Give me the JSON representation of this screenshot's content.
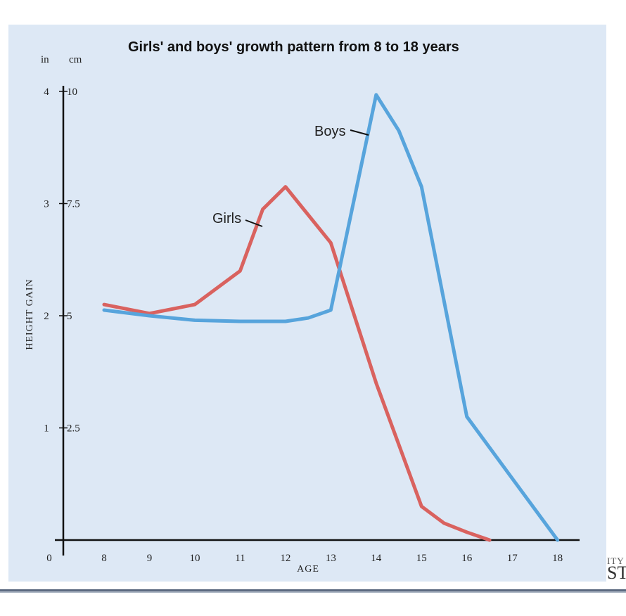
{
  "chart_data": {
    "type": "line",
    "title": "Girls' and boys' growth pattern from 8 to 18 years",
    "xlabel": "AGE",
    "ylabel": "HEIGHT GAIN",
    "y_units": {
      "inches": "in",
      "centimeters": "cm"
    },
    "x_ticks": [
      "8",
      "9",
      "10",
      "11",
      "12",
      "13",
      "14",
      "15",
      "16",
      "17",
      "18"
    ],
    "y_ticks_in": [
      "0",
      "1",
      "2",
      "3",
      "4"
    ],
    "y_ticks_cm": [
      "2.5",
      "5",
      "7.5",
      "10"
    ],
    "xlim": [
      7.1,
      18.3
    ],
    "ylim": [
      0,
      4
    ],
    "grid": false,
    "legend": "inline labels",
    "series": [
      {
        "name": "Girls",
        "color": "#d9625f",
        "x": [
          8,
          9,
          10,
          10.5,
          11,
          11.5,
          12,
          12.3,
          13,
          14,
          15,
          15.5,
          16,
          16.5
        ],
        "y": [
          2.1,
          2.02,
          2.1,
          2.25,
          2.4,
          2.95,
          3.15,
          3.0,
          2.65,
          1.4,
          0.3,
          0.15,
          0.07,
          0.0
        ]
      },
      {
        "name": "Boys",
        "color": "#57a4dc",
        "x": [
          8,
          9,
          10,
          11,
          12,
          12.5,
          13,
          14,
          14.5,
          15,
          16,
          17,
          18
        ],
        "y": [
          2.05,
          2.0,
          1.96,
          1.95,
          1.95,
          1.98,
          2.05,
          3.97,
          3.65,
          3.15,
          1.1,
          0.55,
          0.0
        ]
      }
    ]
  },
  "footer": {
    "fragment_top": "ITY",
    "fragment_bottom": "ST"
  }
}
